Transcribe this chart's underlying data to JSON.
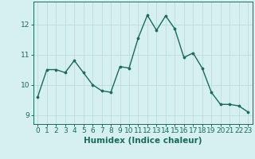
{
  "x": [
    0,
    1,
    2,
    3,
    4,
    5,
    6,
    7,
    8,
    9,
    10,
    11,
    12,
    13,
    14,
    15,
    16,
    17,
    18,
    19,
    20,
    21,
    22,
    23
  ],
  "y": [
    9.6,
    10.5,
    10.5,
    10.4,
    10.8,
    10.4,
    10.0,
    9.8,
    9.75,
    10.6,
    10.55,
    11.55,
    12.3,
    11.8,
    12.28,
    11.85,
    10.9,
    11.05,
    10.55,
    9.75,
    9.35,
    9.35,
    9.3,
    9.1
  ],
  "line_color": "#1a6b5a",
  "marker": "o",
  "marker_size": 2.2,
  "line_width": 1.0,
  "bg_color": "#d6f0ef",
  "grid_color": "#b8d8d5",
  "axis_color": "#1a6b5a",
  "tick_color": "#1a6b5a",
  "xlabel": "Humidex (Indice chaleur)",
  "xlabel_fontsize": 7.5,
  "tick_fontsize": 6.5,
  "yticks": [
    9,
    10,
    11,
    12
  ],
  "ylim": [
    8.7,
    12.75
  ],
  "xlim": [
    -0.5,
    23.5
  ]
}
